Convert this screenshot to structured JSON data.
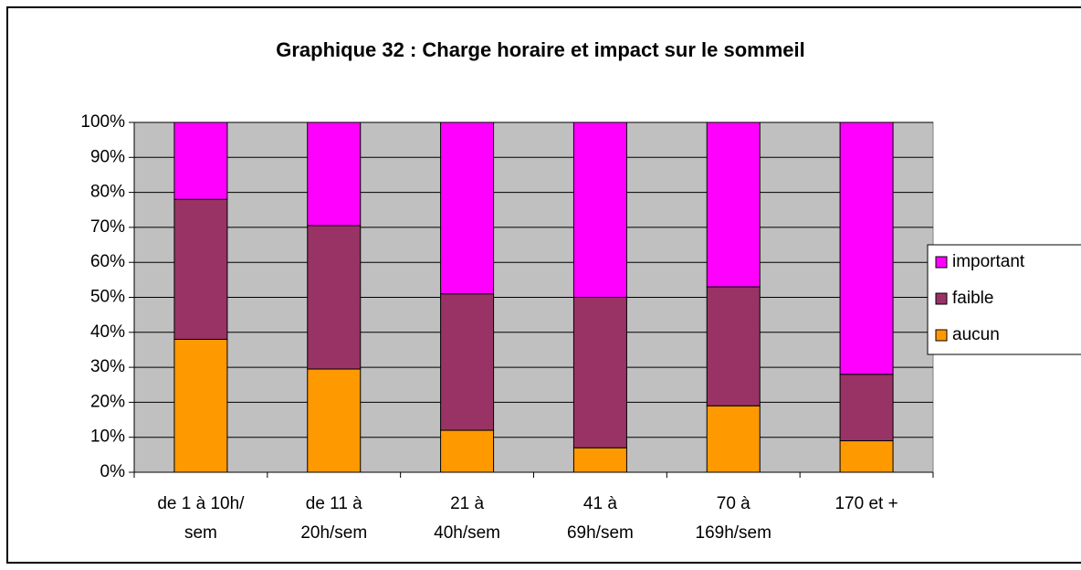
{
  "chart_data": {
    "type": "stacked_bar_100",
    "title": "Graphique 32 : Charge horaire et impact sur le sommeil",
    "categories": [
      [
        "de 1 à 10h/",
        "sem"
      ],
      [
        "de 11 à",
        "20h/sem"
      ],
      [
        "21 à",
        "40h/sem"
      ],
      [
        "41 à",
        "69h/sem"
      ],
      [
        "70 à",
        "169h/sem"
      ],
      [
        "170 et +"
      ]
    ],
    "series": [
      {
        "name": "aucun",
        "color": "#ff9900",
        "values": [
          38,
          29.5,
          12,
          7,
          19,
          9
        ]
      },
      {
        "name": "faible",
        "color": "#993366",
        "values": [
          40,
          41,
          39,
          43,
          34,
          19
        ]
      },
      {
        "name": "important",
        "color": "#ff00ff",
        "values": [
          22,
          29.5,
          49,
          50,
          47,
          72
        ]
      }
    ],
    "ylim": [
      0,
      100
    ],
    "yticks": [
      {
        "value": 0,
        "label": "0%"
      },
      {
        "value": 10,
        "label": "10%"
      },
      {
        "value": 20,
        "label": "20%"
      },
      {
        "value": 30,
        "label": "30%"
      },
      {
        "value": 40,
        "label": "40%"
      },
      {
        "value": 50,
        "label": "50%"
      },
      {
        "value": 60,
        "label": "60%"
      },
      {
        "value": 70,
        "label": "70%"
      },
      {
        "value": 80,
        "label": "80%"
      },
      {
        "value": 90,
        "label": "90%"
      },
      {
        "value": 100,
        "label": "100%"
      }
    ],
    "grid": true,
    "legend": "right"
  }
}
